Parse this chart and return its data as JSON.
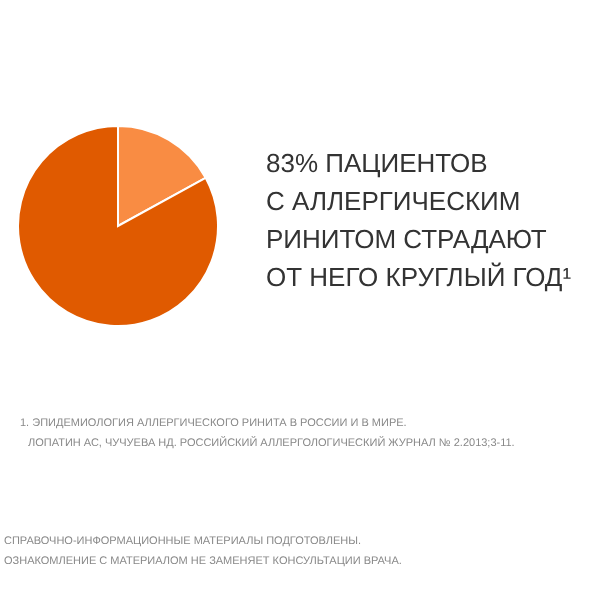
{
  "chart_data": {
    "type": "pie",
    "categories": [
      null,
      null
    ],
    "values": [
      17,
      83
    ],
    "colors": [
      "#f98c43",
      "#e05a00"
    ],
    "annotations": [
      "83% ПАЦИЕНТОВ",
      "С АЛЛЕРГИЧЕСКИМ",
      "РИНИТОМ СТРАДАЮТ",
      "ОТ НЕГО КРУГЛЫЙ ГОД¹",
      "1. ЭПИДЕМИОЛОГИЯ АЛЛЕРГИЧЕСКОГО РИНИТА В РОССИИ И В МИРЕ.",
      "ЛОПАТИН АС, ЧУЧУЕВА НД. РОССИЙСКИЙ АЛЛЕРГОЛОГИЧЕСКИЙ ЖУРНАЛ № 2.2013;3-11.",
      "СПРАВОЧНО-ИНФОРМАЦИОННЫЕ МАТЕРИАЛЫ ПОДГОТОВЛЕНЫ.",
      "ОЗНАКОМЛЕНИЕ С МАТЕРИАЛОМ НЕ ЗАМЕНЯЕТ КОНСУЛЬТАЦИИ ВРАЧА."
    ]
  }
}
